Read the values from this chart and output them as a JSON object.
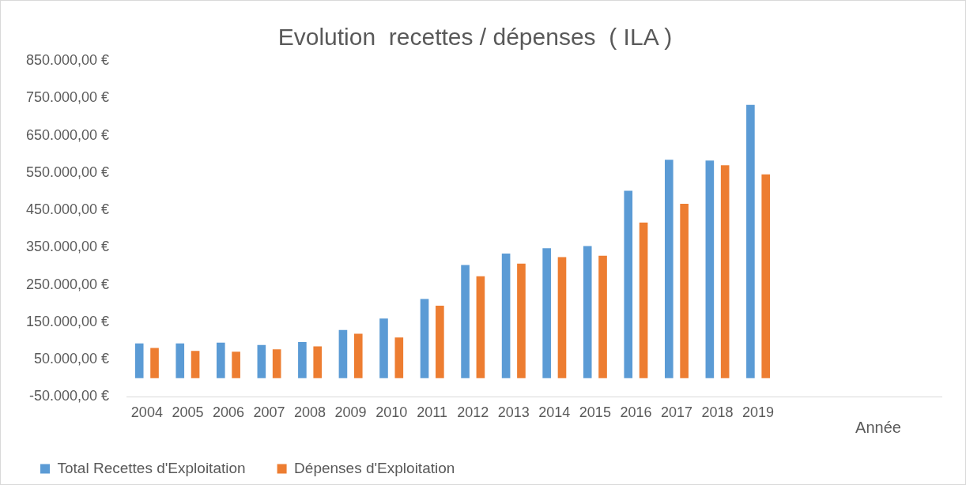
{
  "chart_data": {
    "type": "bar",
    "title": "Evolution  recettes / dépenses  ( ILA )",
    "xlabel": "Année",
    "categories": [
      "2004",
      "2005",
      "2006",
      "2007",
      "2008",
      "2009",
      "2010",
      "2011",
      "2012",
      "2013",
      "2014",
      "2015",
      "2016",
      "2017",
      "2018",
      "2019",
      null,
      null,
      null,
      null
    ],
    "series": [
      {
        "name": "Total Recettes d'Exploitation",
        "color": "#5b9bd5",
        "values": [
          93000,
          93000,
          95000,
          89000,
          97000,
          129000,
          160000,
          212000,
          303000,
          334000,
          348000,
          354000,
          502000,
          585000,
          583000,
          732000,
          null,
          null,
          null,
          null
        ]
      },
      {
        "name": "Dépenses d'Exploitation",
        "color": "#ed7d31",
        "values": [
          81000,
          73000,
          71000,
          77000,
          85000,
          119000,
          109000,
          194000,
          273000,
          307000,
          324000,
          328000,
          417000,
          467000,
          570000,
          546000,
          null,
          null,
          null,
          null
        ]
      }
    ],
    "ylim": [
      -50000,
      850000
    ],
    "yticks": [
      {
        "value": -50000,
        "label": "-50.000,00 €"
      },
      {
        "value": 50000,
        "label": "50.000,00 €"
      },
      {
        "value": 150000,
        "label": "150.000,00 €"
      },
      {
        "value": 250000,
        "label": "250.000,00 €"
      },
      {
        "value": 350000,
        "label": "350.000,00 €"
      },
      {
        "value": 450000,
        "label": "450.000,00 €"
      },
      {
        "value": 550000,
        "label": "550.000,00 €"
      },
      {
        "value": 650000,
        "label": "650.000,00 €"
      },
      {
        "value": 750000,
        "label": "750.000,00 €"
      },
      {
        "value": 850000,
        "label": "850.000,00 €"
      }
    ],
    "grid": false,
    "legend": "bottom left"
  }
}
